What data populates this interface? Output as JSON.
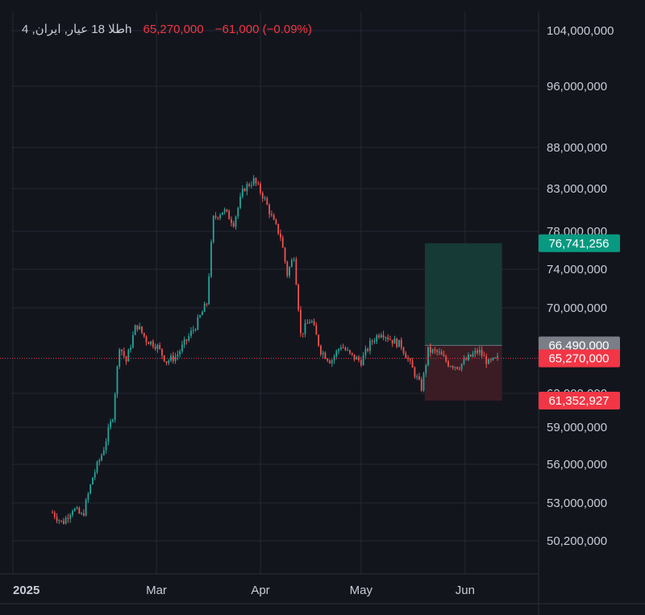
{
  "legend": {
    "symbol": "طلا 18 عیار, ایران, 4h",
    "price": "65,270,000",
    "change": "−61,000 (−0.09%)"
  },
  "colors": {
    "background": "#13151d",
    "up": "#26a69a",
    "down": "#ef5350",
    "grid": "#242733",
    "target_zone": "#163a36",
    "stop_zone": "#3b1c24",
    "last_price": "#f23645",
    "entry": "#7b7e87",
    "target": "#089981"
  },
  "chart_data": {
    "type": "candlestick",
    "y_ticks": [
      104000000,
      96000000,
      88000000,
      83000000,
      78000000,
      74000000,
      70000000,
      62000000,
      59000000,
      56000000,
      53000000,
      50200000
    ],
    "y_tick_labels": [
      "104,000,000",
      "96,000,000",
      "88,000,000",
      "83,000,000",
      "78,000,000",
      "74,000,000",
      "70,000,000",
      "62,000,000",
      "59,000,000",
      "56,000,000",
      "53,000,000",
      "50,200,000"
    ],
    "x_labels": [
      "2025",
      "Mar",
      "Apr",
      "May",
      "Jun"
    ],
    "price_tags": [
      {
        "label": "76,741,256",
        "value": 76741256,
        "role": "target"
      },
      {
        "label": "66,490,000",
        "value": 66490000,
        "role": "entry"
      },
      {
        "label": "65,270,000",
        "value": 65270000,
        "role": "last_price"
      },
      {
        "label": "61,352,927",
        "value": 61352927,
        "role": "stop"
      }
    ],
    "position": {
      "entry": 66490000,
      "target": 76741256,
      "stop": 61352927,
      "start": "May 20",
      "end": "Jun 12"
    },
    "price_path": [
      {
        "date": "Jan 29",
        "price": 52300000
      },
      {
        "date": "Feb 1",
        "price": 51500000
      },
      {
        "date": "Feb 4",
        "price": 52600000
      },
      {
        "date": "Feb 7",
        "price": 52000000
      },
      {
        "date": "Feb 10",
        "price": 55000000
      },
      {
        "date": "Feb 13",
        "price": 57000000
      },
      {
        "date": "Feb 16",
        "price": 60000000
      },
      {
        "date": "Feb 18",
        "price": 66500000
      },
      {
        "date": "Feb 20",
        "price": 65000000
      },
      {
        "date": "Feb 23",
        "price": 68500000
      },
      {
        "date": "Feb 26",
        "price": 67000000
      },
      {
        "date": "Mar 1",
        "price": 66500000
      },
      {
        "date": "Mar 4",
        "price": 65000000
      },
      {
        "date": "Mar 7",
        "price": 65500000
      },
      {
        "date": "Mar 10",
        "price": 67000000
      },
      {
        "date": "Mar 13",
        "price": 68500000
      },
      {
        "date": "Mar 16",
        "price": 70500000
      },
      {
        "date": "Mar 18",
        "price": 79500000
      },
      {
        "date": "Mar 21",
        "price": 80500000
      },
      {
        "date": "Mar 24",
        "price": 79000000
      },
      {
        "date": "Mar 27",
        "price": 83000000
      },
      {
        "date": "Mar 30",
        "price": 84000000
      },
      {
        "date": "Apr 2",
        "price": 82000000
      },
      {
        "date": "Apr 5",
        "price": 79000000
      },
      {
        "date": "Apr 7",
        "price": 77500000
      },
      {
        "date": "Apr 9",
        "price": 73500000
      },
      {
        "date": "Apr 11",
        "price": 75500000
      },
      {
        "date": "Apr 13",
        "price": 67500000
      },
      {
        "date": "Apr 16",
        "price": 69000000
      },
      {
        "date": "Apr 19",
        "price": 66000000
      },
      {
        "date": "Apr 22",
        "price": 65000000
      },
      {
        "date": "Apr 25",
        "price": 66500000
      },
      {
        "date": "Apr 28",
        "price": 65500000
      },
      {
        "date": "May 1",
        "price": 65000000
      },
      {
        "date": "May 4",
        "price": 66800000
      },
      {
        "date": "May 7",
        "price": 67800000
      },
      {
        "date": "May 10",
        "price": 67000000
      },
      {
        "date": "May 13",
        "price": 66500000
      },
      {
        "date": "May 16",
        "price": 64500000
      },
      {
        "date": "May 19",
        "price": 62500000
      },
      {
        "date": "May 21",
        "price": 66000000
      },
      {
        "date": "May 24",
        "price": 65800000
      },
      {
        "date": "May 27",
        "price": 64800000
      },
      {
        "date": "May 30",
        "price": 64500000
      },
      {
        "date": "Jun 2",
        "price": 65300000
      },
      {
        "date": "Jun 5",
        "price": 66000000
      },
      {
        "date": "Jun 8",
        "price": 64800000
      },
      {
        "date": "Jun 11",
        "price": 65270000
      }
    ]
  }
}
